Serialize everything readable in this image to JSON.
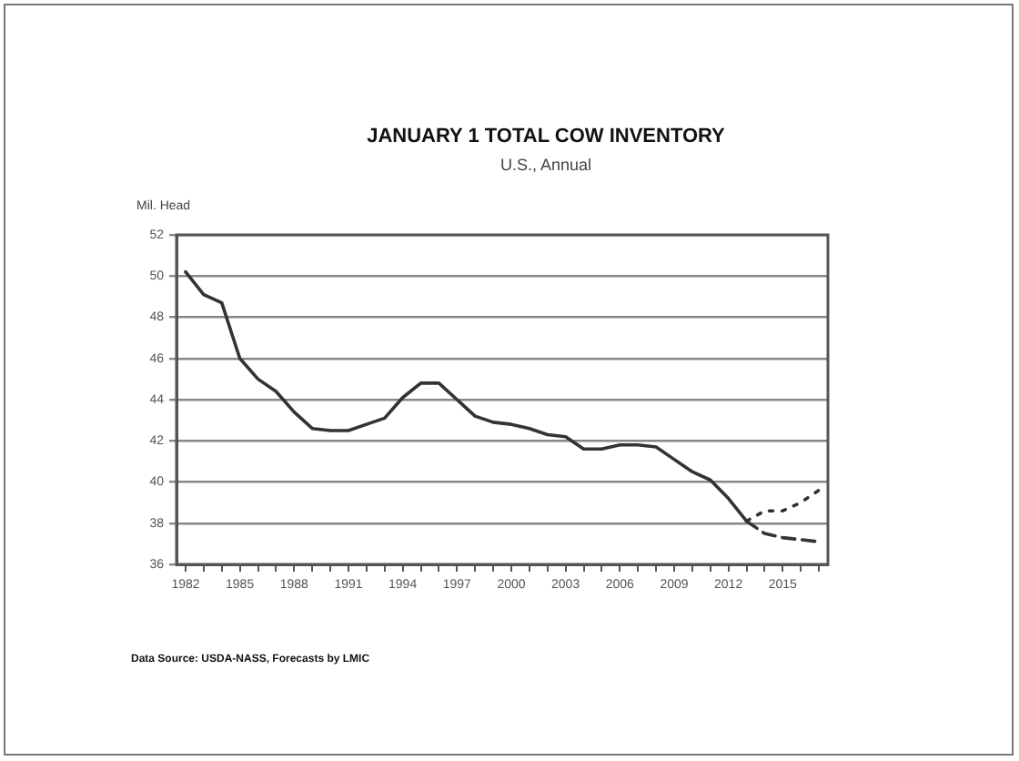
{
  "chart_data": {
    "type": "line",
    "title": "JANUARY 1 TOTAL COW INVENTORY",
    "subtitle": "U.S., Annual",
    "ylabel": "Mil. Head",
    "categories": [
      "1982",
      null,
      null,
      "1985",
      null,
      null,
      "1988",
      null,
      null,
      "1991",
      null,
      null,
      "1994",
      null,
      null,
      "1997",
      null,
      null,
      "2000",
      null,
      null,
      "2003",
      null,
      null,
      "2006",
      null,
      null,
      "2009",
      null,
      null,
      "2012",
      null,
      null,
      "2015",
      null,
      null
    ],
    "series": [
      {
        "color": "#333333",
        "line_style": "solid",
        "values": [
          50.2,
          49.1,
          48.7,
          46.0,
          45.0,
          44.4,
          43.4,
          42.6,
          42.5,
          42.5,
          42.8,
          43.1,
          44.1,
          44.8,
          44.8,
          44.0,
          43.2,
          42.9,
          42.8,
          42.6,
          42.3,
          42.2,
          41.6,
          41.6,
          41.8,
          41.8,
          41.7,
          41.1,
          40.5,
          40.1,
          39.2,
          38.1,
          null,
          null,
          null,
          null
        ]
      },
      {
        "color": "#333333",
        "line_style": "dashed",
        "values": [
          null,
          null,
          null,
          null,
          null,
          null,
          null,
          null,
          null,
          null,
          null,
          null,
          null,
          null,
          null,
          null,
          null,
          null,
          null,
          null,
          null,
          null,
          null,
          null,
          null,
          null,
          null,
          null,
          null,
          null,
          null,
          38.1,
          37.5,
          37.3,
          37.2,
          37.1
        ]
      },
      {
        "color": "#333333",
        "line_style": "dotted",
        "values": [
          null,
          null,
          null,
          null,
          null,
          null,
          null,
          null,
          null,
          null,
          null,
          null,
          null,
          null,
          null,
          null,
          null,
          null,
          null,
          null,
          null,
          null,
          null,
          null,
          null,
          null,
          null,
          null,
          null,
          null,
          null,
          38.1,
          38.6,
          38.6,
          39.0,
          39.6
        ]
      }
    ],
    "ylim": [
      36,
      52
    ],
    "yticks": [
      36,
      38,
      40,
      42,
      44,
      46,
      48,
      50,
      52
    ],
    "grid": "y",
    "annotations": [
      "Data Source: USDA-NASS, Forecasts by LMIC"
    ]
  }
}
